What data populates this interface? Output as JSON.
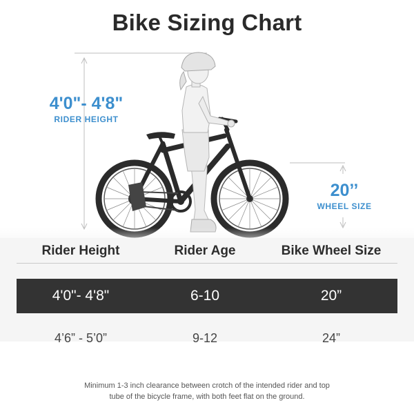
{
  "title": "Bike Sizing Chart",
  "rider_height_callout": {
    "value": "4'0\"- 4'8\"",
    "label": "RIDER HEIGHT"
  },
  "wheel_size_callout": {
    "value": "20’’",
    "label": "WHEEL SIZE"
  },
  "table": {
    "headers": [
      "Rider Height",
      "Rider Age",
      "Bike Wheel Size"
    ],
    "rows": [
      [
        "4'0\"- 4'8\"",
        "6-10",
        "20”"
      ],
      [
        "4’6”  - 5’0”",
        "9-12",
        "24”"
      ]
    ],
    "highlight_color": "#333333"
  },
  "note": {
    "line1": "Minimum 1-3 inch clearance between crotch of the intended rider and top",
    "line2": "tube of the bicycle frame, with both feet flat on the ground."
  },
  "colors": {
    "accent": "#3d8fce",
    "text": "#2a2a2a",
    "bike": "#2b2b2b"
  }
}
